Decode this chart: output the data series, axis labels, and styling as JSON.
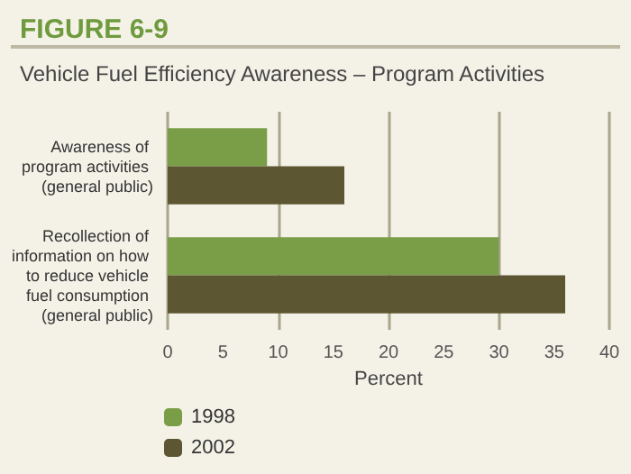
{
  "chart_data": {
    "type": "bar",
    "orientation": "horizontal",
    "title": "FIGURE 6-9",
    "subtitle": "Vehicle Fuel Efficiency Awareness – Program Activities",
    "categories": [
      "Awareness of program activities (general public)",
      "Recollection of information on how to reduce vehicle fuel consumption (general public)"
    ],
    "series": [
      {
        "name": "1998",
        "color": "#7a9e48",
        "values": [
          9,
          30
        ]
      },
      {
        "name": "2002",
        "color": "#5c5632",
        "values": [
          16,
          36
        ]
      }
    ],
    "xlabel": "Percent",
    "xlim": [
      0,
      40
    ],
    "xticks": [
      0,
      5,
      10,
      15,
      20,
      25,
      30,
      35,
      40
    ],
    "grid": "x",
    "legend": "bottom left"
  }
}
